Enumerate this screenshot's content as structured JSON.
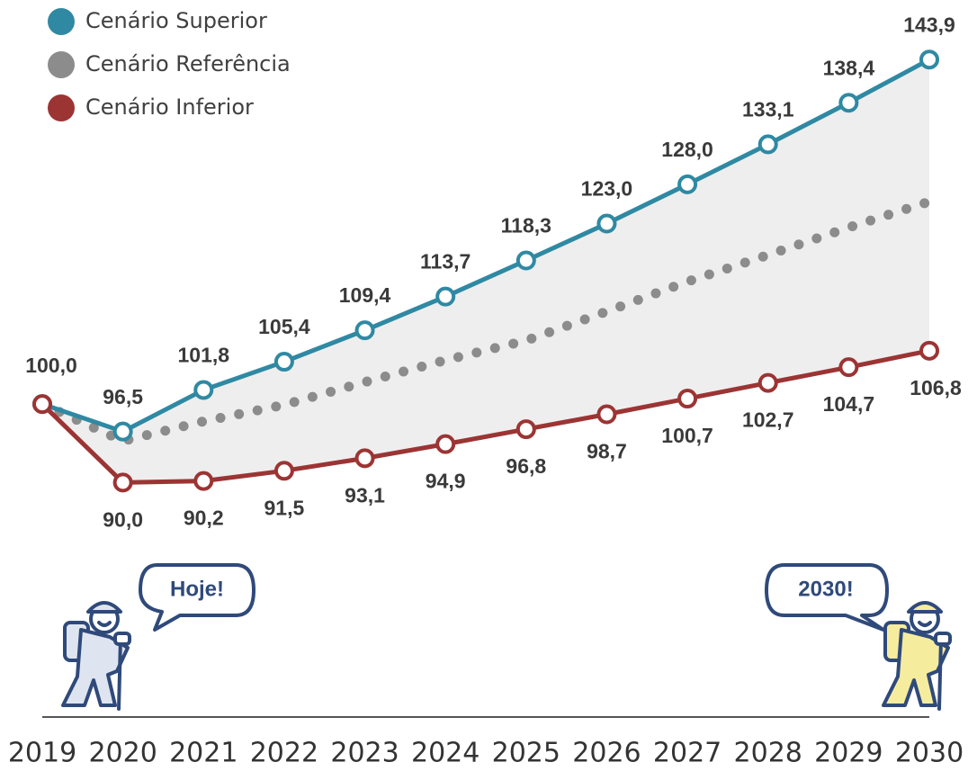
{
  "chart_data": {
    "type": "line",
    "categories": [
      "2019",
      "2020",
      "2021",
      "2022",
      "2023",
      "2024",
      "2025",
      "2026",
      "2027",
      "2028",
      "2029",
      "2030"
    ],
    "ylim": [
      85,
      150
    ],
    "legend": "top-left",
    "series": [
      {
        "name": "Cenário Superior",
        "color": "#2f89a3",
        "style": "solid",
        "values": [
          100.0,
          96.5,
          101.8,
          105.4,
          109.4,
          113.7,
          118.3,
          123.0,
          128.0,
          133.1,
          138.4,
          143.9
        ],
        "value_labels": [
          "100,0",
          "96,5",
          "101,8",
          "105,4",
          "109,4",
          "113,7",
          "118,3",
          "123,0",
          "128,0",
          "133,1",
          "138,4",
          "143,9"
        ]
      },
      {
        "name": "Cenário Referência",
        "color": "#8c8c8c",
        "style": "dotted",
        "values": [
          100.0,
          95.3,
          97.8,
          99.9,
          102.8,
          105.6,
          108.1,
          111.8,
          115.6,
          119.0,
          122.5,
          125.8
        ]
      },
      {
        "name": "Cenário Inferior",
        "color": "#9c3434",
        "style": "solid",
        "values": [
          100.0,
          90.0,
          90.2,
          91.5,
          93.1,
          94.9,
          96.8,
          98.7,
          100.7,
          102.7,
          104.7,
          106.8
        ],
        "value_labels": [
          null,
          "90,0",
          "90,2",
          "91,5",
          "93,1",
          "94,9",
          "96,8",
          "98,7",
          "100,7",
          "102,7",
          "104,7",
          "106,8"
        ]
      }
    ],
    "annotations": [
      "Hoje!",
      "2030!"
    ]
  }
}
